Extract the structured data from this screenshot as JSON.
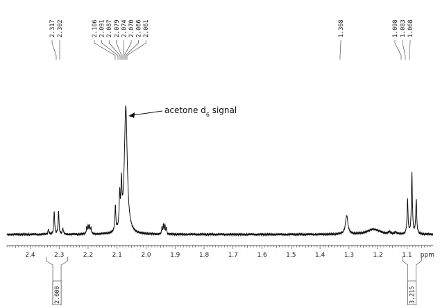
{
  "chart_data": {
    "type": "line",
    "xlabel": "ppm",
    "x_reversed": true,
    "xlim": [
      2.48,
      1.01
    ],
    "x_ticks": [
      "2.4",
      "2.3",
      "2.2",
      "2.1",
      "2.0",
      "1.9",
      "1.8",
      "1.7",
      "1.6",
      "1.5",
      "1.4",
      "1.3",
      "1.2",
      "1.1"
    ],
    "peak_labels": [
      {
        "group": "g1",
        "labels": [
          "2.317",
          "2.302"
        ]
      },
      {
        "group": "g2",
        "labels": [
          "2.106",
          "2.091",
          "2.087",
          "2.079",
          "2.074",
          "2.070",
          "2.066",
          "2.061"
        ]
      },
      {
        "group": "g3",
        "labels": [
          "1.308"
        ]
      },
      {
        "group": "g4",
        "labels": [
          "1.098",
          "1.083",
          "1.068"
        ]
      }
    ],
    "integrals": [
      {
        "value": "2.000",
        "ppm_range": [
          2.345,
          2.27
        ]
      },
      {
        "value": "3.215",
        "ppm_range": [
          1.115,
          1.05
        ]
      }
    ],
    "annotation": {
      "text": "acetone d",
      "subscript": "6",
      "suffix": " signal",
      "target_ppm": 2.07
    },
    "peaks": [
      {
        "ppm": 2.337,
        "height": 0.06,
        "width": 0.002
      },
      {
        "ppm": 2.317,
        "height": 0.31,
        "width": 0.0018
      },
      {
        "ppm": 2.302,
        "height": 0.31,
        "width": 0.0018
      },
      {
        "ppm": 2.287,
        "height": 0.08,
        "width": 0.002
      },
      {
        "ppm": 2.205,
        "height": 0.09,
        "width": 0.0015
      },
      {
        "ppm": 2.2,
        "height": 0.12,
        "width": 0.0015
      },
      {
        "ppm": 2.195,
        "height": 0.12,
        "width": 0.0015
      },
      {
        "ppm": 2.19,
        "height": 0.08,
        "width": 0.0015
      },
      {
        "ppm": 2.106,
        "height": 0.33,
        "width": 0.002
      },
      {
        "ppm": 2.091,
        "height": 0.45,
        "width": 0.002
      },
      {
        "ppm": 2.085,
        "height": 0.55,
        "width": 0.002
      },
      {
        "ppm": 2.07,
        "height": 1.7,
        "width": 0.006
      },
      {
        "ppm": 1.945,
        "height": 0.09,
        "width": 0.0015
      },
      {
        "ppm": 1.94,
        "height": 0.12,
        "width": 0.0015
      },
      {
        "ppm": 1.935,
        "height": 0.12,
        "width": 0.0015
      },
      {
        "ppm": 1.93,
        "height": 0.08,
        "width": 0.0015
      },
      {
        "ppm": 1.308,
        "height": 0.25,
        "width": 0.005
      },
      {
        "ppm": 1.215,
        "height": 0.07,
        "width": 0.025
      },
      {
        "ppm": 1.16,
        "height": 0.025,
        "width": 0.004
      },
      {
        "ppm": 1.14,
        "height": 0.025,
        "width": 0.004
      },
      {
        "ppm": 1.098,
        "height": 0.46,
        "width": 0.002
      },
      {
        "ppm": 1.083,
        "height": 0.82,
        "width": 0.002
      },
      {
        "ppm": 1.068,
        "height": 0.46,
        "width": 0.002
      }
    ]
  }
}
